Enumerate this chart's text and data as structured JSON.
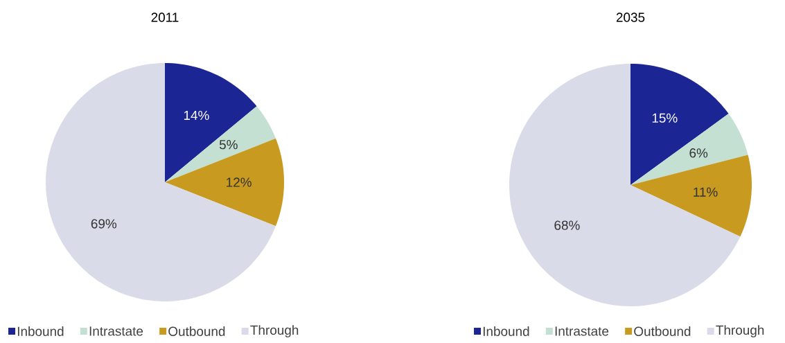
{
  "chart_data": [
    {
      "type": "pie",
      "title": "2011",
      "categories": [
        "Inbound",
        "Intrastate",
        "Outbound",
        "Through"
      ],
      "values": [
        14,
        5,
        12,
        69
      ],
      "value_labels": [
        "14%",
        "5%",
        "12%",
        "69%"
      ],
      "colors": [
        "#1c2594",
        "#c4e0d3",
        "#c99a20",
        "#d9dbe8"
      ],
      "legend": "bottom"
    },
    {
      "type": "pie",
      "title": "2035",
      "categories": [
        "Inbound",
        "Intrastate",
        "Outbound",
        "Through"
      ],
      "values": [
        15,
        6,
        11,
        68
      ],
      "value_labels": [
        "15%",
        "6%",
        "11%",
        "68%"
      ],
      "colors": [
        "#1c2594",
        "#c4e0d3",
        "#c99a20",
        "#d9dbe8"
      ],
      "legend": "bottom"
    }
  ]
}
